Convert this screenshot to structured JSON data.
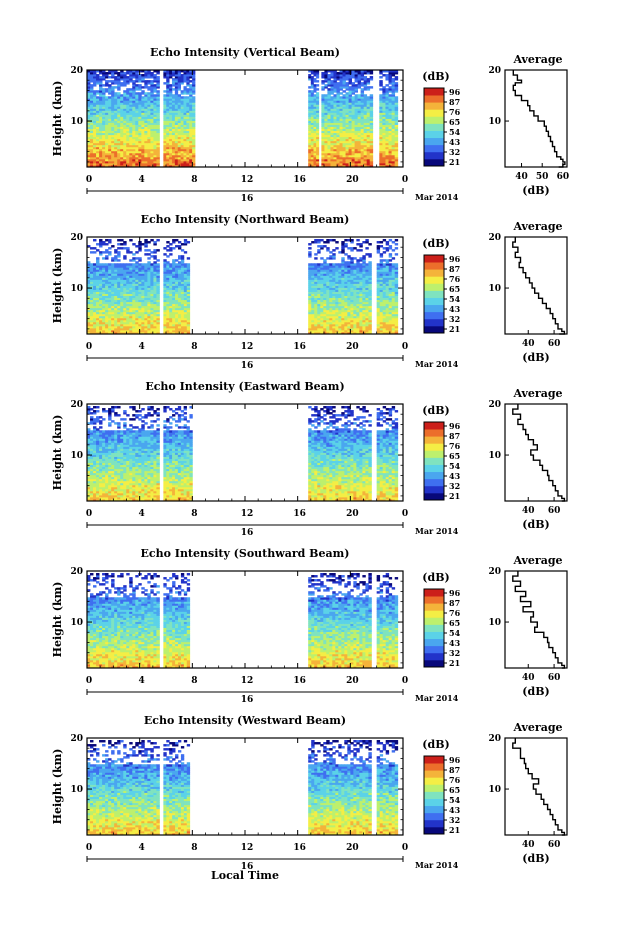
{
  "common": {
    "ylabel": "Height (km)",
    "date_text": "Mar 2014",
    "day": "16",
    "xlabel": "Local Time",
    "avg_title": "Average",
    "avg_unit": "(dB)",
    "cb_unit": "(dB)",
    "cb_ticks": [
      "96",
      "87",
      "76",
      "65",
      "54",
      "43",
      "32",
      "21"
    ],
    "colormap": [
      "#08087a",
      "#2233c9",
      "#3f6ff0",
      "#4aa6ef",
      "#5bd2e8",
      "#7fe3bf",
      "#bdf06d",
      "#f4ee45",
      "#f4b33a",
      "#ec6e2b",
      "#cc1f1a"
    ]
  },
  "chart_data": [
    {
      "type": "heatmap",
      "title": "Echo Intensity (Vertical Beam)",
      "xticks": [
        "0",
        "4",
        "8",
        "12",
        "16",
        "20",
        "0"
      ],
      "x_range": [
        0,
        24
      ],
      "yticks": [
        "20",
        "10"
      ],
      "y_range": [
        1,
        20
      ],
      "data_intervals_h": [
        [
          0,
          5.5
        ],
        [
          5.8,
          8.2
        ],
        [
          16.8,
          17.6
        ],
        [
          17.8,
          21.7
        ],
        [
          22.2,
          23.6
        ]
      ],
      "average_profile": {
        "xticks": [
          "40",
          "50",
          "60"
        ],
        "x_range": [
          32,
          62
        ],
        "heights_km": [
          20,
          19,
          18,
          17.5,
          17,
          16,
          15,
          14,
          13,
          12,
          11,
          10,
          9,
          8,
          7,
          6,
          5,
          4,
          3,
          2.5,
          2,
          1.5,
          1
        ],
        "values_db": [
          36,
          38,
          40,
          37,
          36,
          37,
          40,
          43,
          44,
          46,
          48,
          51,
          52,
          53,
          54,
          55,
          56,
          57,
          59,
          60,
          61,
          60,
          58
        ]
      }
    },
    {
      "type": "heatmap",
      "title": "Echo Intensity (Northward Beam)",
      "xticks": [
        "0",
        "4",
        "8",
        "12",
        "16",
        "20",
        "0"
      ],
      "x_range": [
        0,
        24
      ],
      "yticks": [
        "20",
        "10"
      ],
      "y_range": [
        1,
        20
      ],
      "data_intervals_h": [
        [
          0,
          5.5
        ],
        [
          5.8,
          7.8
        ],
        [
          16.8,
          21.6
        ],
        [
          22.0,
          23.6
        ]
      ],
      "average_profile": {
        "xticks": [
          "40",
          "60"
        ],
        "x_range": [
          22,
          70
        ],
        "heights_km": [
          20,
          19,
          18,
          17,
          16,
          15,
          14,
          13,
          12,
          11,
          10,
          9,
          8,
          7,
          6,
          5,
          4,
          3,
          2,
          1.5,
          1
        ],
        "values_db": [
          30,
          28,
          32,
          30,
          34,
          33,
          36,
          38,
          41,
          43,
          45,
          48,
          51,
          54,
          57,
          59,
          61,
          63,
          66,
          68,
          64
        ]
      }
    },
    {
      "type": "heatmap",
      "title": "Echo Intensity (Eastward Beam)",
      "xticks": [
        "0",
        "4",
        "8",
        "12",
        "16",
        "20",
        "0"
      ],
      "x_range": [
        0,
        24
      ],
      "yticks": [
        "20",
        "10"
      ],
      "y_range": [
        1,
        20
      ],
      "data_intervals_h": [
        [
          0,
          5.5
        ],
        [
          5.8,
          8.0
        ],
        [
          16.8,
          21.6
        ],
        [
          22.0,
          23.6
        ]
      ],
      "average_profile": {
        "xticks": [
          "40",
          "60"
        ],
        "x_range": [
          22,
          70
        ],
        "heights_km": [
          20,
          19,
          18,
          17,
          16,
          15,
          14,
          13,
          12,
          11,
          10,
          9,
          8,
          7,
          6,
          5,
          4,
          3,
          2,
          1.5,
          1
        ],
        "values_db": [
          32,
          28,
          34,
          32,
          36,
          38,
          40,
          44,
          47,
          42,
          44,
          49,
          51,
          55,
          56,
          59,
          61,
          63,
          66,
          68,
          66
        ]
      }
    },
    {
      "type": "heatmap",
      "title": "Echo Intensity (Southward Beam)",
      "xticks": [
        "0",
        "4",
        "8",
        "12",
        "16",
        "20",
        "0"
      ],
      "x_range": [
        0,
        24
      ],
      "yticks": [
        "20",
        "10"
      ],
      "y_range": [
        1,
        20
      ],
      "data_intervals_h": [
        [
          0,
          5.5
        ],
        [
          5.8,
          7.8
        ],
        [
          16.8,
          21.6
        ],
        [
          22.0,
          23.6
        ]
      ],
      "average_profile": {
        "xticks": [
          "40",
          "60"
        ],
        "x_range": [
          22,
          70
        ],
        "heights_km": [
          20,
          19,
          18,
          17,
          16,
          15,
          14,
          13,
          12,
          11,
          10,
          9,
          8,
          7,
          6,
          5,
          4,
          3,
          2,
          1.5,
          1
        ],
        "values_db": [
          32,
          28,
          34,
          30,
          38,
          34,
          42,
          36,
          44,
          42,
          47,
          45,
          52,
          55,
          56,
          59,
          61,
          63,
          66,
          68,
          66
        ]
      }
    },
    {
      "type": "heatmap",
      "title": "Echo Intensity (Westward Beam)",
      "xticks": [
        "0",
        "4",
        "8",
        "12",
        "16",
        "20",
        "0"
      ],
      "x_range": [
        0,
        24
      ],
      "yticks": [
        "20",
        "10"
      ],
      "y_range": [
        1,
        20
      ],
      "data_intervals_h": [
        [
          0,
          5.5
        ],
        [
          5.8,
          7.8
        ],
        [
          16.8,
          21.6
        ],
        [
          22.0,
          23.6
        ]
      ],
      "average_profile": {
        "xticks": [
          "40",
          "60"
        ],
        "x_range": [
          22,
          70
        ],
        "heights_km": [
          20,
          19,
          18,
          17,
          16,
          15,
          14,
          13,
          12,
          11,
          10,
          9,
          8,
          7,
          6,
          5,
          4,
          3,
          2,
          1.5,
          1
        ],
        "values_db": [
          30,
          28,
          34,
          34,
          37,
          38,
          40,
          43,
          48,
          44,
          46,
          50,
          52,
          55,
          57,
          59,
          61,
          63,
          66,
          68,
          66
        ]
      }
    }
  ]
}
